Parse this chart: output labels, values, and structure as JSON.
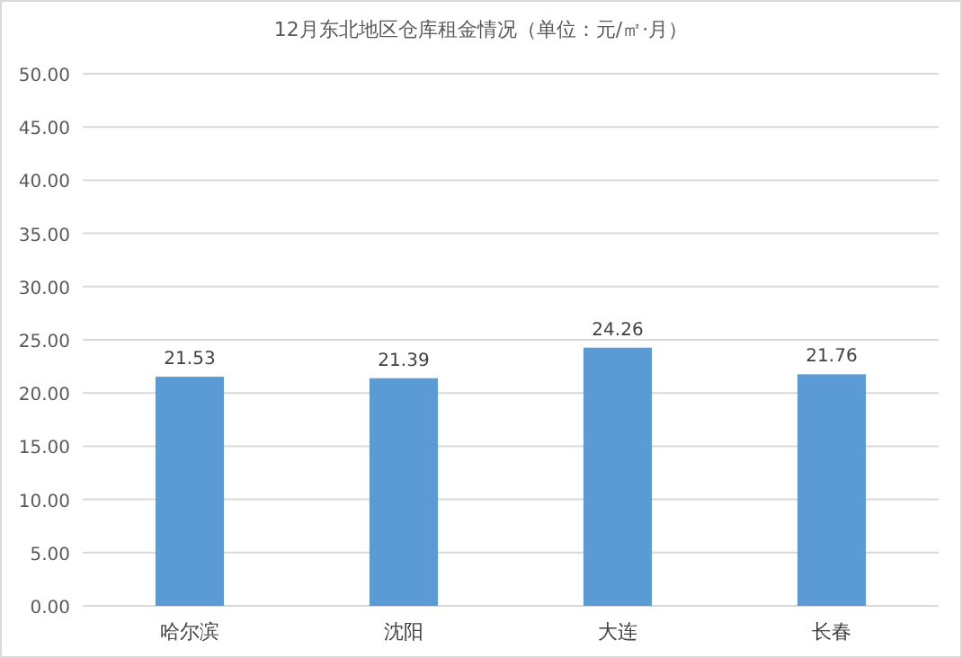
{
  "chart_data": {
    "type": "bar",
    "title": "12月东北地区仓库租金情况（单位：元/㎡·月）",
    "categories": [
      "哈尔滨",
      "沈阳",
      "大连",
      "长春"
    ],
    "values": [
      21.53,
      21.39,
      24.26,
      21.76
    ],
    "color": "#5b9bd5",
    "ylim": [
      0,
      50
    ],
    "yticks": [
      {
        "value": 0,
        "label": "0.00"
      },
      {
        "value": 5,
        "label": "5.00"
      },
      {
        "value": 10,
        "label": "10.00"
      },
      {
        "value": 15,
        "label": "15.00"
      },
      {
        "value": 20,
        "label": "20.00"
      },
      {
        "value": 25,
        "label": "25.00"
      },
      {
        "value": 30,
        "label": "30.00"
      },
      {
        "value": 35,
        "label": "35.00"
      },
      {
        "value": 40,
        "label": "40.00"
      },
      {
        "value": 45,
        "label": "45.00"
      },
      {
        "value": 50,
        "label": "50.00"
      }
    ],
    "grid": "y",
    "data_labels": true
  }
}
